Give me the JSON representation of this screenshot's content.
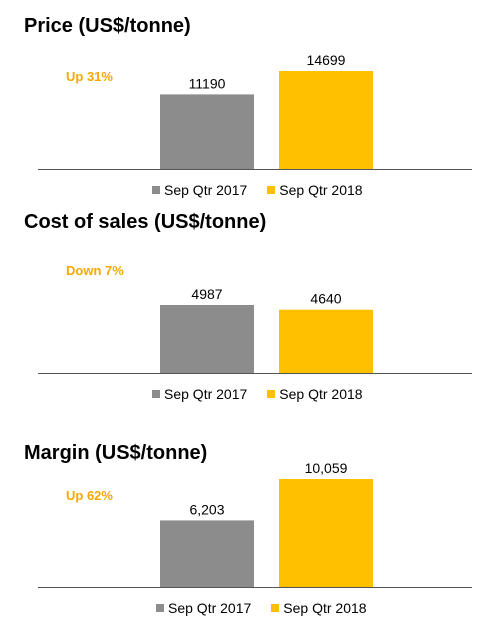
{
  "colors": {
    "sep_qtr_2017": "#8C8C8C",
    "sep_qtr_2018": "#FFC000",
    "change_text": "#F5A800"
  },
  "chart_data": [
    {
      "type": "bar",
      "title": "Price (US$/tonne)",
      "annotation": "Up 31%",
      "categories": [
        "Sep Qtr 2017",
        "Sep Qtr 2018"
      ],
      "values": [
        11190,
        14699
      ],
      "value_labels": [
        "11190",
        "14699"
      ],
      "legend": [
        "Sep Qtr 2017",
        "Sep Qtr 2018"
      ],
      "ylim": [
        0,
        16000
      ],
      "grid": false,
      "legend_position": "bottom"
    },
    {
      "type": "bar",
      "title": "Cost of sales (US$/tonne)",
      "annotation": "Down 7%",
      "categories": [
        "Sep Qtr 2017",
        "Sep Qtr 2018"
      ],
      "values": [
        4987,
        4640
      ],
      "value_labels": [
        "4987",
        "4640"
      ],
      "legend": [
        "Sep Qtr 2017",
        "Sep Qtr 2018"
      ],
      "ylim": [
        0,
        7200
      ],
      "grid": false,
      "legend_position": "bottom"
    },
    {
      "type": "bar",
      "title": "Margin (US$/tonne)",
      "annotation": "Up 62%",
      "categories": [
        "Sep Qtr 2017",
        "Sep Qtr 2018"
      ],
      "values": [
        6203,
        10059
      ],
      "value_labels": [
        "6,203",
        "10,059"
      ],
      "legend": [
        "Sep Qtr 2017",
        "Sep Qtr 2018"
      ],
      "ylim": [
        0,
        11000
      ],
      "grid": false,
      "legend_position": "bottom"
    }
  ]
}
